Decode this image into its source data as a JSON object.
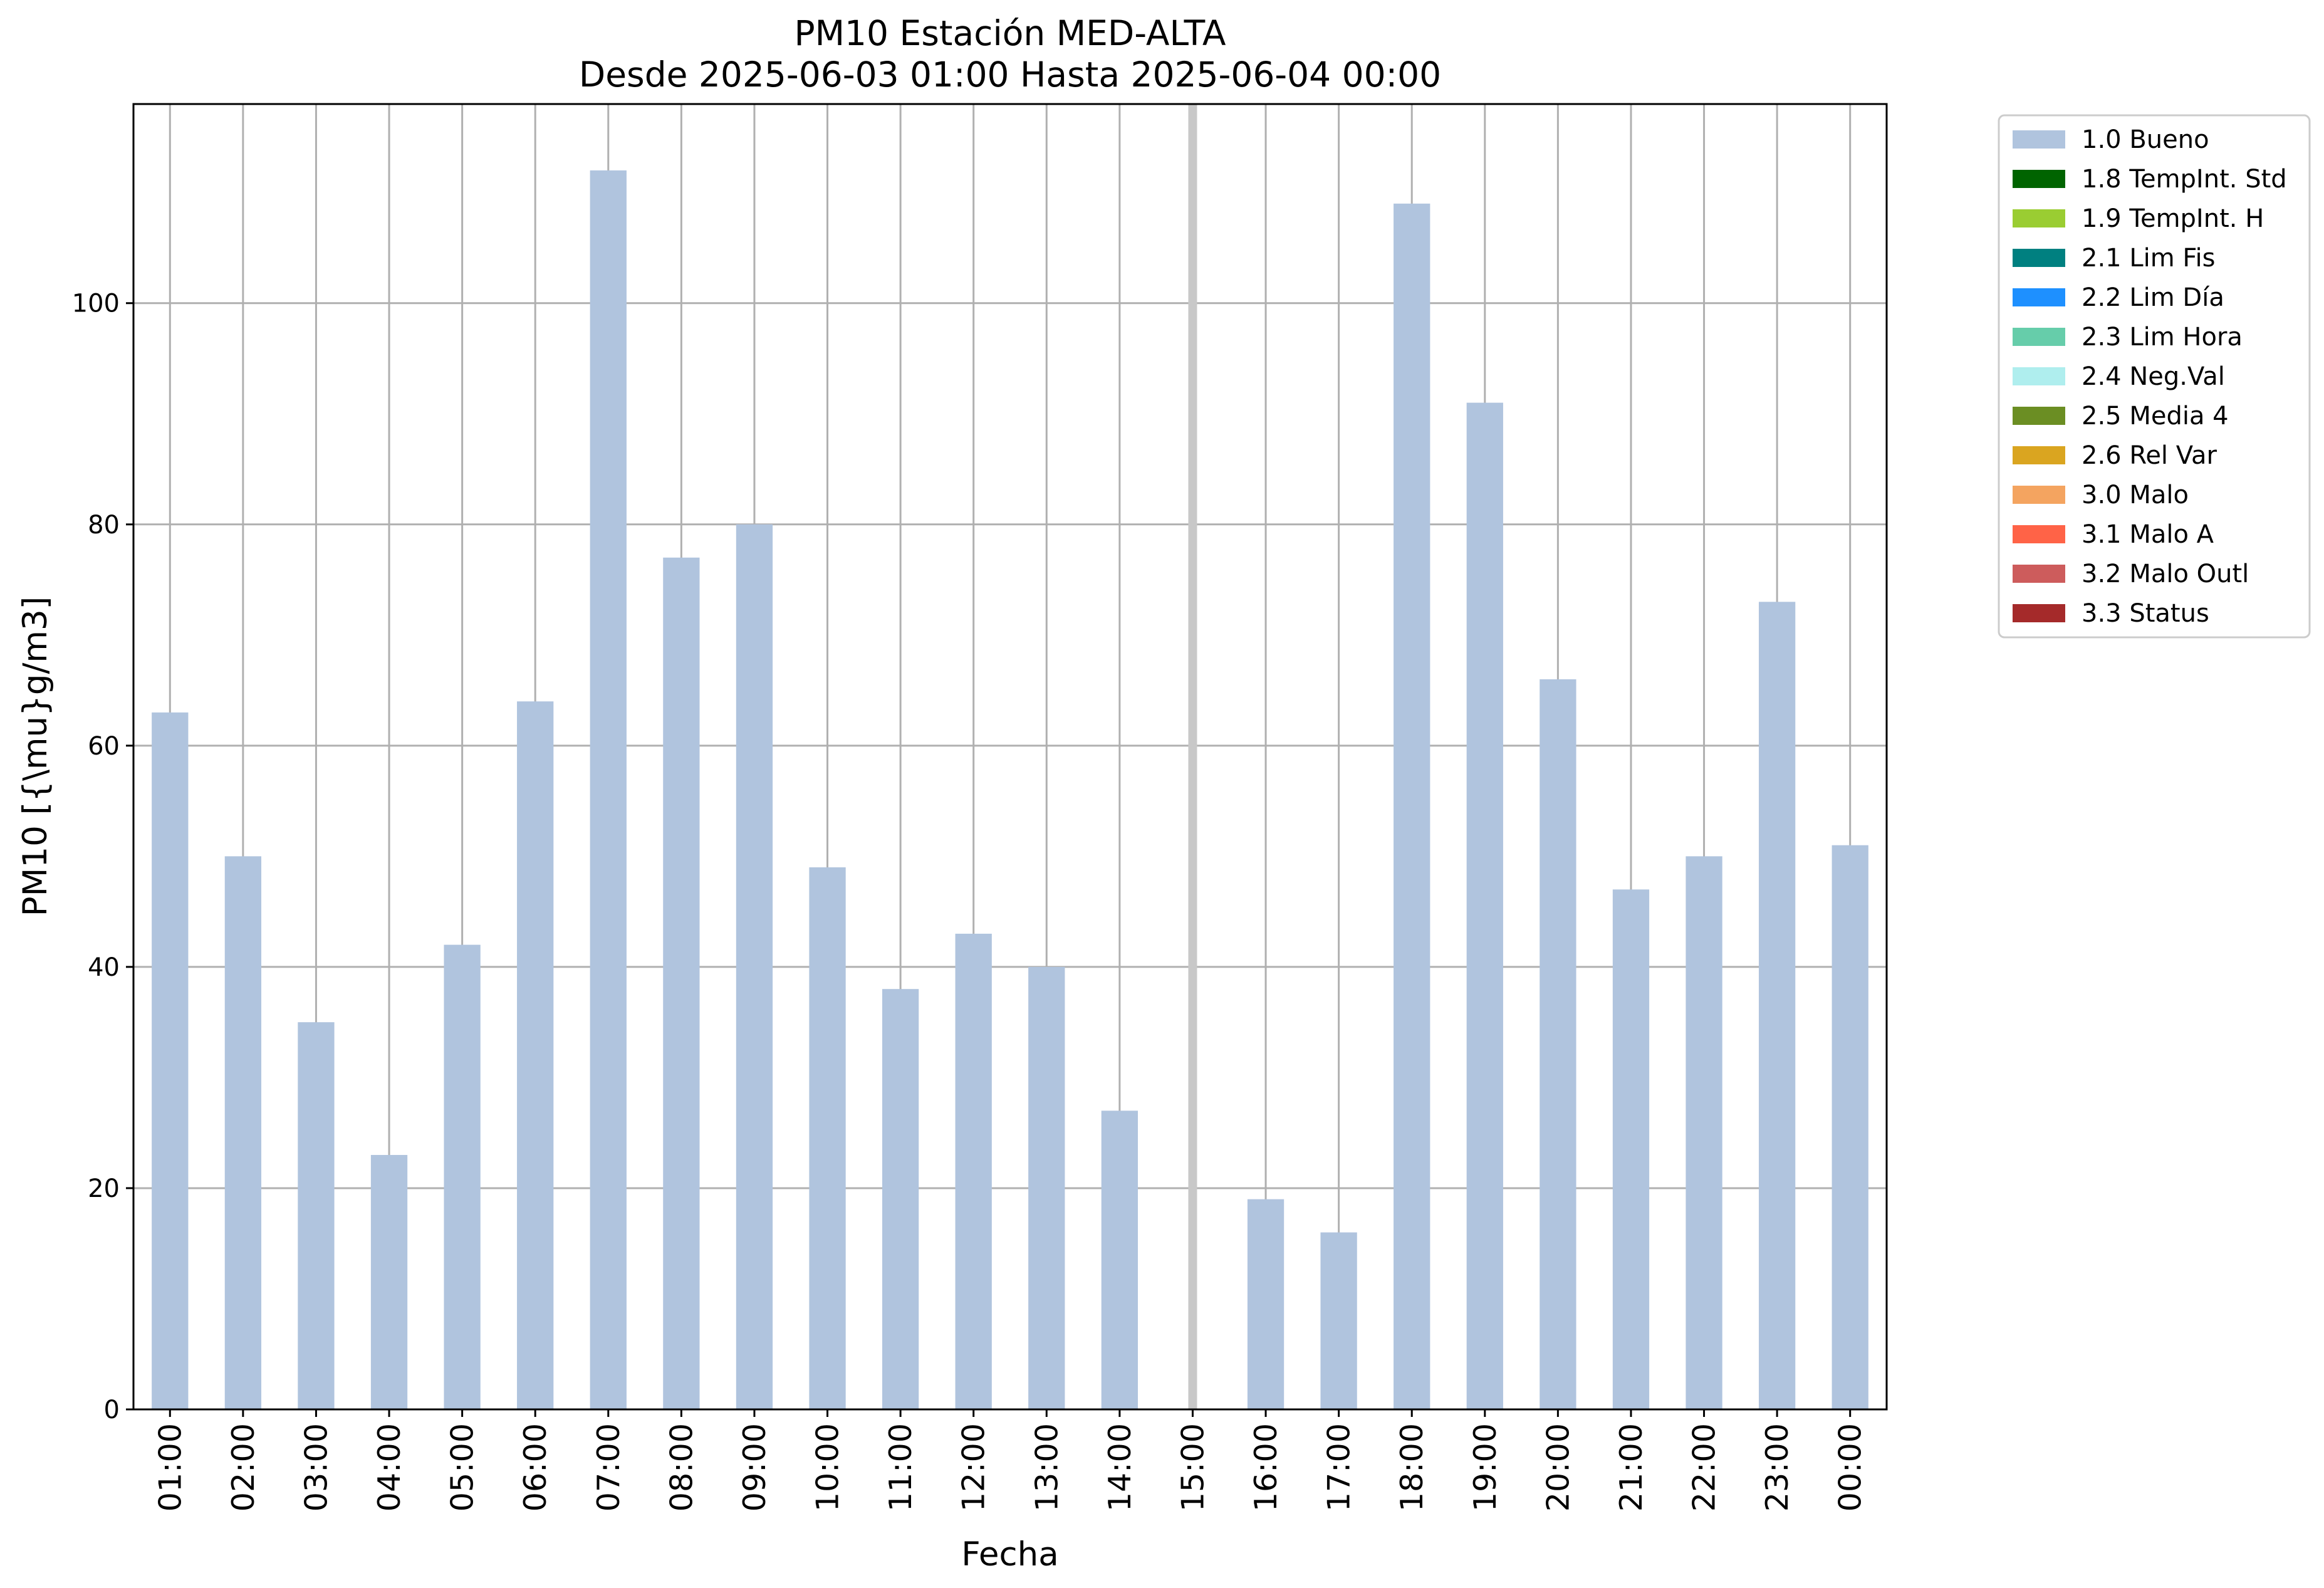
{
  "chart_data": {
    "type": "bar",
    "title": "PM10 Estación MED-ALTA",
    "subtitle": "Desde 2025-06-03 01:00 Hasta 2025-06-04 00:00",
    "xlabel": "Fecha",
    "ylabel": "PM10 [{\\mu}g/m3]",
    "ylim": [
      0,
      118
    ],
    "yticks": [
      "0",
      "20",
      "40",
      "60",
      "80",
      "100"
    ],
    "grid": true,
    "legend_position": "outside-top-right",
    "categories": [
      "01:00",
      "02:00",
      "03:00",
      "04:00",
      "05:00",
      "06:00",
      "07:00",
      "08:00",
      "09:00",
      "10:00",
      "11:00",
      "12:00",
      "13:00",
      "14:00",
      "15:00",
      "16:00",
      "17:00",
      "18:00",
      "19:00",
      "20:00",
      "21:00",
      "22:00",
      "23:00",
      "00:00"
    ],
    "series": [
      {
        "name": "1.0 Bueno",
        "color": "#b0c4de",
        "values": [
          63,
          50,
          35,
          23,
          42,
          64,
          112,
          77,
          80,
          49,
          38,
          43,
          40,
          27,
          null,
          19,
          16,
          109,
          91,
          66,
          47,
          50,
          73,
          51
        ]
      }
    ],
    "missing_marker": {
      "category": "15:00",
      "color": "#c8c8c8"
    },
    "legend": [
      {
        "label": "1.0 Bueno",
        "color": "#b0c4de"
      },
      {
        "label": "1.8 TempInt. Std",
        "color": "#006400"
      },
      {
        "label": "1.9 TempInt. H",
        "color": "#9acd32"
      },
      {
        "label": "2.1 Lim Fis",
        "color": "#008080"
      },
      {
        "label": "2.2 Lim Día",
        "color": "#1e90ff"
      },
      {
        "label": "2.3 Lim Hora",
        "color": "#66cdaa"
      },
      {
        "label": "2.4 Neg.Val",
        "color": "#afeeee"
      },
      {
        "label": "2.5 Media 4",
        "color": "#6b8e23"
      },
      {
        "label": "2.6 Rel Var",
        "color": "#daa520"
      },
      {
        "label": "3.0 Malo",
        "color": "#f4a460"
      },
      {
        "label": "3.1 Malo A",
        "color": "#ff6347"
      },
      {
        "label": "3.2 Malo Outl",
        "color": "#cd5c5c"
      },
      {
        "label": "3.3 Status",
        "color": "#a52a2a"
      }
    ]
  }
}
